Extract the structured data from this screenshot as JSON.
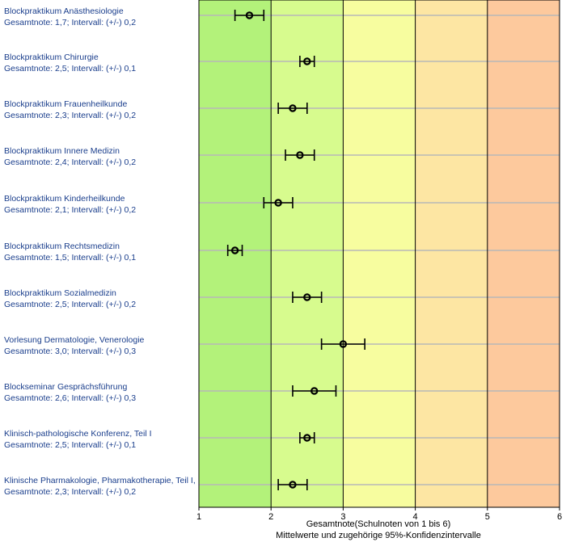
{
  "chart_data": {
    "type": "errorbar",
    "xlabel": "Gesamtnote(Schulnoten von 1 bis 6)",
    "subtitle": "Mittelwerte und zugehörige 95%-Konfidenzintervalle",
    "xlim": [
      1,
      6
    ],
    "ticks": [
      1,
      2,
      3,
      4,
      5,
      6
    ],
    "grid": "horizontal lines per row, vertical lines at integer grades",
    "zone_colors": [
      "#b3f27a",
      "#d7fb8e",
      "#f7fd9f",
      "#fde6a3",
      "#fdc99d"
    ],
    "items": [
      {
        "title": "Blockpraktikum Anästhesiologie",
        "summary": "Gesamtnote: 1,7;  Intervall: (+/-) 0,2",
        "mean": 1.7,
        "ci": 0.2
      },
      {
        "title": "Blockpraktikum Chirurgie",
        "summary": "Gesamtnote: 2,5;  Intervall: (+/-) 0,1",
        "mean": 2.5,
        "ci": 0.1
      },
      {
        "title": "Blockpraktikum Frauenheilkunde",
        "summary": "Gesamtnote: 2,3;  Intervall: (+/-) 0,2",
        "mean": 2.3,
        "ci": 0.2
      },
      {
        "title": "Blockpraktikum Innere Medizin",
        "summary": "Gesamtnote: 2,4;  Intervall: (+/-) 0,2",
        "mean": 2.4,
        "ci": 0.2
      },
      {
        "title": "Blockpraktikum Kinderheilkunde",
        "summary": "Gesamtnote: 2,1;  Intervall: (+/-) 0,2",
        "mean": 2.1,
        "ci": 0.2
      },
      {
        "title": "Blockpraktikum Rechtsmedizin",
        "summary": "Gesamtnote: 1,5;  Intervall: (+/-) 0,1",
        "mean": 1.5,
        "ci": 0.1
      },
      {
        "title": "Blockpraktikum Sozialmedizin",
        "summary": "Gesamtnote: 2,5;  Intervall: (+/-) 0,2",
        "mean": 2.5,
        "ci": 0.2
      },
      {
        "title": "Vorlesung Dermatologie, Venerologie",
        "summary": "Gesamtnote: 3,0;  Intervall: (+/-) 0,3",
        "mean": 3.0,
        "ci": 0.3
      },
      {
        "title": "Blockseminar Gesprächsführung",
        "summary": "Gesamtnote: 2,6;  Intervall: (+/-) 0,3",
        "mean": 2.6,
        "ci": 0.3
      },
      {
        "title": "Klinisch-pathologische Konferenz, Teil I",
        "summary": "Gesamtnote: 2,5;  Intervall: (+/-) 0,1",
        "mean": 2.5,
        "ci": 0.1
      },
      {
        "title": "Klinische Pharmakologie, Pharmakotherapie, Teil I,",
        "summary": "Gesamtnote: 2,3;  Intervall: (+/-) 0,2",
        "mean": 2.3,
        "ci": 0.2
      }
    ]
  }
}
